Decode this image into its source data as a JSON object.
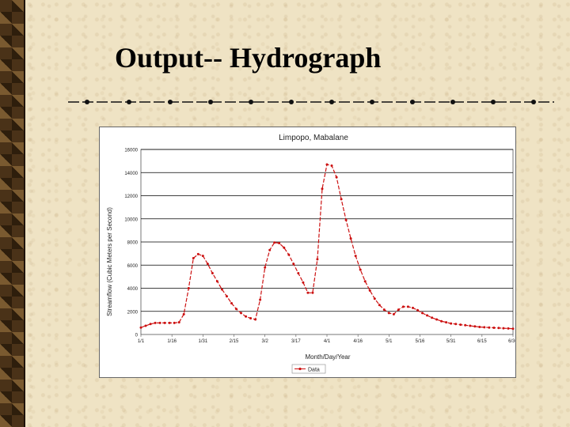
{
  "slide": {
    "title": "Output-- Hydrograph"
  },
  "colors": {
    "series": "#cc1111",
    "grid": "#000000",
    "plot_bg": "#ffffff"
  },
  "chart_data": {
    "type": "line",
    "title": "Limpopo, Mabalane",
    "xlabel": "Month/Day/Year",
    "ylabel": "Streamflow (Cubic Meters per Second)",
    "ylim": [
      0,
      16000
    ],
    "yticks": [
      0,
      2000,
      4000,
      6000,
      8000,
      10000,
      12000,
      14000,
      16000
    ],
    "xtick_labels": [
      "1/1",
      "1/16",
      "1/31",
      "2/15",
      "3/2",
      "3/17",
      "4/1",
      "4/16",
      "5/1",
      "5/16",
      "5/31",
      "6/15",
      "6/30"
    ],
    "grid": true,
    "legend": {
      "position": "bottom",
      "entries": [
        "Data"
      ]
    },
    "series": [
      {
        "name": "Data",
        "values": [
          600,
          750,
          900,
          1000,
          1000,
          1000,
          1000,
          1000,
          1050,
          1750,
          4000,
          6600,
          6950,
          6800,
          6100,
          5300,
          4600,
          3900,
          3300,
          2700,
          2200,
          1850,
          1550,
          1400,
          1300,
          3000,
          5800,
          7300,
          7950,
          7900,
          7500,
          6900,
          6100,
          5300,
          4500,
          3600,
          3600,
          6500,
          12600,
          14700,
          14600,
          13600,
          11700,
          9900,
          8300,
          6800,
          5600,
          4600,
          3800,
          3100,
          2550,
          2150,
          1850,
          1750,
          2150,
          2400,
          2400,
          2300,
          2100,
          1850,
          1650,
          1450,
          1300,
          1150,
          1050,
          950,
          900,
          850,
          800,
          750,
          700,
          650,
          620,
          600,
          580,
          560,
          540,
          520,
          500
        ]
      }
    ]
  }
}
